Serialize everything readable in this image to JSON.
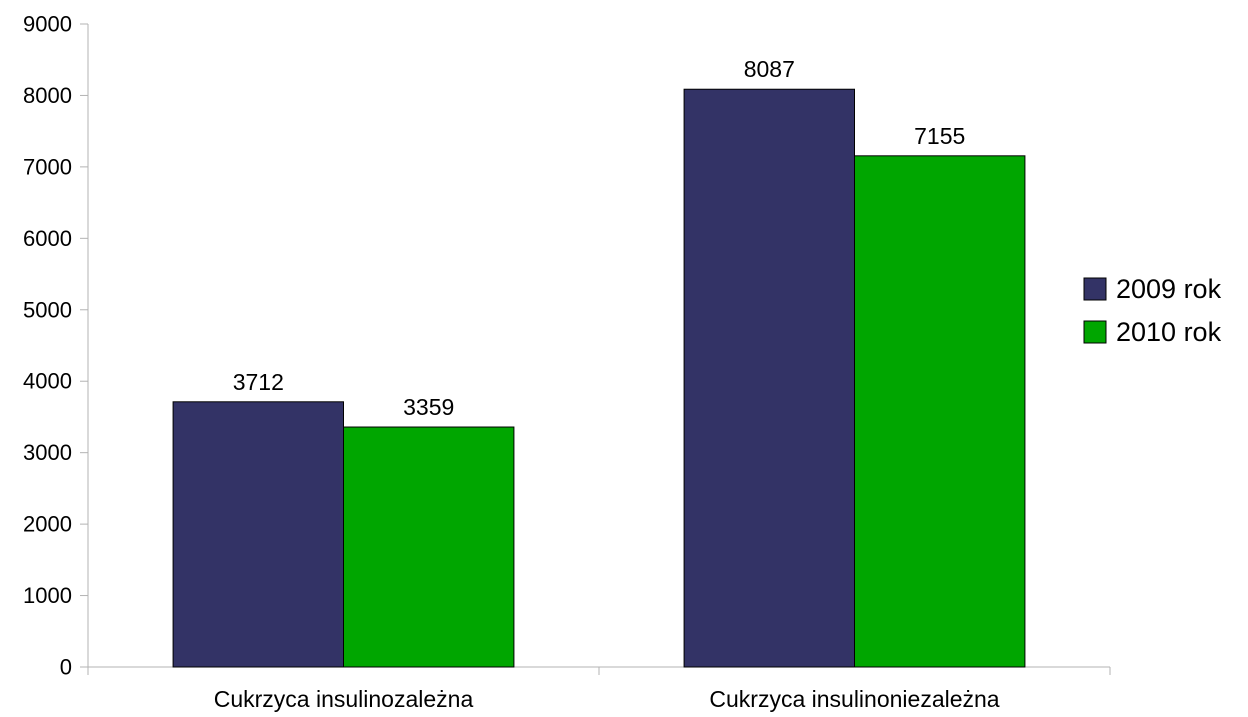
{
  "chart_data": {
    "type": "bar",
    "title": "",
    "xlabel": "",
    "ylabel": "",
    "categories": [
      "Cukrzyca insulinozależna",
      "Cukrzyca insulinoniezależna"
    ],
    "series": [
      {
        "name": "2009 rok",
        "values": [
          3712,
          8087
        ],
        "color": "#333366"
      },
      {
        "name": "2010 rok",
        "values": [
          3359,
          7155
        ],
        "color": "#00A600"
      }
    ],
    "ylim": [
      0,
      9000
    ],
    "yticks": [
      0,
      1000,
      2000,
      3000,
      4000,
      5000,
      6000,
      7000,
      8000,
      9000
    ],
    "data_labels": true,
    "grid": false,
    "legend_position": "right"
  }
}
